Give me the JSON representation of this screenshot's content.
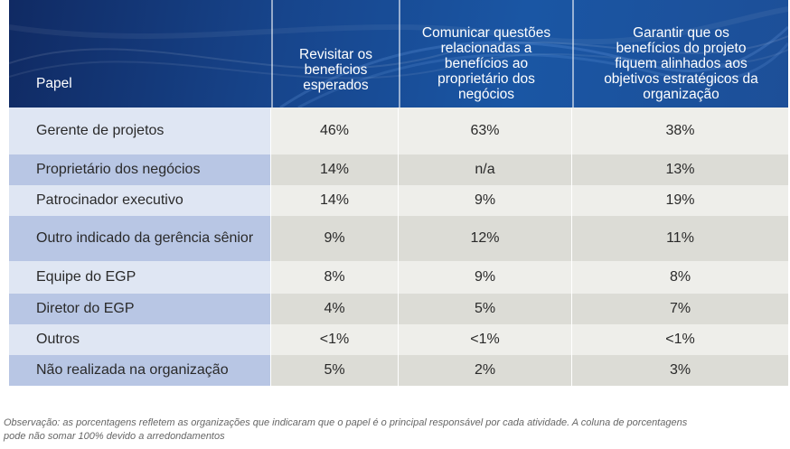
{
  "table": {
    "headers": [
      "Papel",
      "Revisitar os beneficios esperados",
      "Comunicar questões relacionadas a benefícios ao proprietário dos negócios",
      "Garantir que os benefícios do projeto fiquem alinhados aos objetivos estratégicos da organização"
    ],
    "header_lines": {
      "c1": [
        "Revisitar os",
        "beneficios",
        "esperados"
      ],
      "c2": [
        "Comunicar questões",
        "relacionadas a",
        "benefícios ao",
        "proprietário dos",
        "negócios"
      ],
      "c3": [
        "Garantir que os",
        "benefícios do projeto",
        "fiquem alinhados aos",
        "objetivos estratégicos da",
        "organização"
      ]
    },
    "rows": [
      {
        "role": "Gerente de projetos",
        "v1": "46%",
        "v2": "63%",
        "v3": "38%"
      },
      {
        "role": "Proprietário dos negócios",
        "v1": "14%",
        "v2": "n/a",
        "v3": "13%"
      },
      {
        "role": "Patrocinador executivo",
        "v1": "14%",
        "v2": "9%",
        "v3": "19%"
      },
      {
        "role": "Outro indicado da gerência sênior",
        "v1": "9%",
        "v2": "12%",
        "v3": "11%"
      },
      {
        "role": "Equipe do EGP",
        "v1": "8%",
        "v2": "9%",
        "v3": "8%"
      },
      {
        "role": "Diretor do EGP",
        "v1": "4%",
        "v2": "5%",
        "v3": "7%"
      },
      {
        "role": "Outros",
        "v1": "<1%",
        "v2": "<1%",
        "v3": "<1%"
      },
      {
        "role": "Não realizada na  organização",
        "v1": "5%",
        "v2": "2%",
        "v3": "3%"
      }
    ]
  },
  "note": {
    "line1": "Observação: as porcentagens refletem as organizações que indicaram que o papel é o principal responsável por cada atividade. A coluna de porcentagens",
    "line2": "pode não somar 100% devido a arredondamentos"
  },
  "colors": {
    "header_bg": "#17458c",
    "role_light": "#dfe6f3",
    "role_dark": "#b8c6e4",
    "value_light": "#eeeeea",
    "value_dark": "#dcdcd6"
  }
}
